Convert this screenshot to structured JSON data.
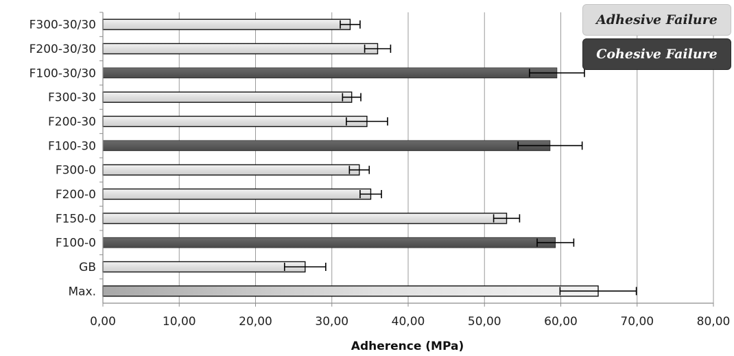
{
  "chart_data": {
    "type": "bar",
    "orientation": "horizontal",
    "categories": [
      "F300-30/30",
      "F200-30/30",
      "F100-30/30",
      "F300-30",
      "F200-30",
      "F100-30",
      "F300-0",
      "F200-0",
      "F150-0",
      "F100-0",
      "GB",
      "Max."
    ],
    "values": [
      32.4,
      36.0,
      59.5,
      32.6,
      34.6,
      58.6,
      33.6,
      35.1,
      52.9,
      59.3,
      26.5,
      64.9
    ],
    "errors": [
      1.3,
      1.7,
      3.6,
      1.2,
      2.7,
      4.2,
      1.3,
      1.4,
      1.7,
      2.4,
      2.7,
      5.0
    ],
    "failure_mode": [
      "adhesive",
      "adhesive",
      "cohesive",
      "adhesive",
      "adhesive",
      "cohesive",
      "adhesive",
      "adhesive",
      "adhesive",
      "cohesive",
      "adhesive",
      "adhesive"
    ],
    "xlabel": "Adherence (MPa)",
    "ylabel": "",
    "title": "",
    "xlim": [
      0,
      80
    ],
    "xticks": [
      0,
      10,
      20,
      30,
      40,
      50,
      60,
      70,
      80
    ],
    "xtick_labels": [
      "0,00",
      "10,00",
      "20,00",
      "30,00",
      "40,00",
      "50,00",
      "60,00",
      "70,00",
      "80,00"
    ],
    "grid": "vertical",
    "legend_position": "top-right",
    "legend": [
      {
        "label": "Adhesive Failure",
        "color": "#dcdcdc"
      },
      {
        "label": "Cohesive Failure",
        "color": "#404040"
      }
    ],
    "colors": {
      "adhesive": "#e2e2e2",
      "cohesive": "#5a5a5a",
      "max": "#c8c8c8",
      "grid": "#9a9a9a",
      "axis": "#8c8c8c"
    }
  }
}
